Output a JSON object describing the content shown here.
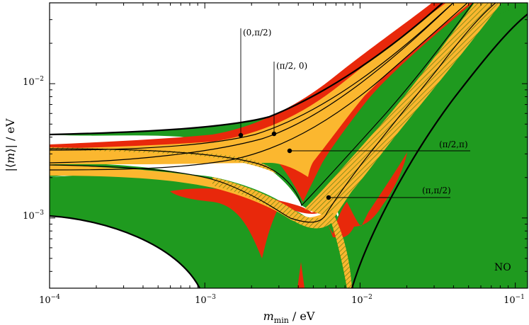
{
  "chart_data": {
    "type": "area",
    "title": "",
    "xlabel": "m_min / eV",
    "ylabel": "|⟨m⟩| / eV",
    "xscale": "log",
    "yscale": "log",
    "xlim": [
      0.0001,
      0.12
    ],
    "ylim": [
      0.0003,
      0.04
    ],
    "x_tick_labels": [
      "10^-4",
      "10^-3",
      "10^-2",
      "10^-1"
    ],
    "y_tick_labels": [
      "10^-3",
      "10^-2"
    ],
    "x_ticks": [
      0.0001,
      0.001,
      0.01,
      0.1
    ],
    "y_ticks": [
      0.001,
      0.01
    ],
    "grid": false,
    "legend": "none",
    "regions": [
      {
        "name": "green",
        "color": "#1f9a1f"
      },
      {
        "name": "red",
        "color": "#e8280b"
      },
      {
        "name": "orange",
        "color": "#fbb72f"
      }
    ],
    "annotations": [
      {
        "text": "(0,π/2)",
        "point": [
          0.0017,
          0.0039
        ]
      },
      {
        "text": "(π/2, 0)",
        "point": [
          0.0028,
          0.004
        ]
      },
      {
        "text": "(π/2,π)",
        "point": [
          0.0035,
          0.0031
        ]
      },
      {
        "text": "(π,π/2)",
        "point": [
          0.0062,
          0.00135
        ]
      }
    ],
    "corner_label": "NO"
  }
}
